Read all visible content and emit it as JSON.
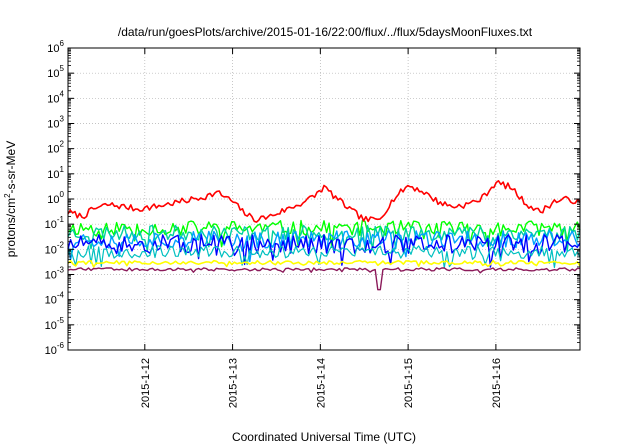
{
  "chart_data": {
    "type": "line",
    "title": "/data/run/goesPlots/archive/2015-01-16/22:00/flux/../flux/5daysMoonFluxes.txt",
    "xlabel": "Coordinated Universal Time (UTC)",
    "ylabel": {
      "main": "protons/cm",
      "sup": "2",
      "rest": "-s-sr-MeV"
    },
    "x_range": [
      "2015-01-11 03:00",
      "2015-01-16 23:00"
    ],
    "ylim": [
      1e-06,
      1000000.0
    ],
    "y_scale": "log",
    "grid": true,
    "x_ticks": [
      {
        "date": "2015-01-12",
        "label": "2015-1-12"
      },
      {
        "date": "2015-01-13",
        "label": "2015-1-13"
      },
      {
        "date": "2015-01-14",
        "label": "2015-1-14"
      },
      {
        "date": "2015-01-15",
        "label": "2015-1-15"
      },
      {
        "date": "2015-01-16",
        "label": "2015-1-16"
      }
    ],
    "y_ticks": [
      {
        "value": 1e-06,
        "base": "10",
        "exp": "-6"
      },
      {
        "value": 1e-05,
        "base": "10",
        "exp": "-5"
      },
      {
        "value": 0.0001,
        "base": "10",
        "exp": "-4"
      },
      {
        "value": 0.001,
        "base": "10",
        "exp": "-3"
      },
      {
        "value": 0.01,
        "base": "10",
        "exp": "-2"
      },
      {
        "value": 0.1,
        "base": "10",
        "exp": "-1"
      },
      {
        "value": 1,
        "base": "10",
        "exp": "0"
      },
      {
        "value": 10,
        "base": "10",
        "exp": "1"
      },
      {
        "value": 100,
        "base": "10",
        "exp": "2"
      },
      {
        "value": 1000,
        "base": "10",
        "exp": "3"
      },
      {
        "value": 10000,
        "base": "10",
        "exp": "4"
      },
      {
        "value": 100000,
        "base": "10",
        "exp": "5"
      },
      {
        "value": 1000000,
        "base": "10",
        "exp": "6"
      }
    ],
    "series": [
      {
        "color": "#ff0000",
        "width": 1.6,
        "x": [
          "2015-01-11 03:00",
          "2015-01-11 07:00",
          "2015-01-11 10:00",
          "2015-01-11 14:00",
          "2015-01-11 18:00",
          "2015-01-11 22:00",
          "2015-01-12 03:00",
          "2015-01-12 08:00",
          "2015-01-12 12:00",
          "2015-01-12 16:00",
          "2015-01-12 20:00",
          "2015-01-13 00:00",
          "2015-01-13 03:00",
          "2015-01-13 06:00",
          "2015-01-13 10:00",
          "2015-01-13 14:00",
          "2015-01-13 18:00",
          "2015-01-13 22:00",
          "2015-01-14 01:00",
          "2015-01-14 04:00",
          "2015-01-14 08:00",
          "2015-01-14 12:00",
          "2015-01-14 16:00",
          "2015-01-14 20:00",
          "2015-01-15 00:00",
          "2015-01-15 04:00",
          "2015-01-15 08:00",
          "2015-01-15 12:00",
          "2015-01-15 16:00",
          "2015-01-15 20:00",
          "2015-01-16 00:00",
          "2015-01-16 04:00",
          "2015-01-16 08:00",
          "2015-01-16 12:00",
          "2015-01-16 16:00",
          "2015-01-16 20:00",
          "2015-01-16 23:00"
        ],
        "y": [
          0.3,
          0.2,
          0.4,
          0.6,
          0.5,
          0.4,
          0.5,
          0.7,
          0.9,
          1.2,
          1.8,
          0.8,
          0.3,
          0.15,
          0.2,
          0.35,
          0.6,
          1.2,
          3.0,
          1.2,
          0.4,
          0.15,
          0.15,
          1.0,
          3.5,
          2.0,
          0.8,
          0.5,
          0.6,
          1.0,
          4.5,
          3.0,
          0.7,
          0.3,
          0.8,
          1.0,
          0.7
        ]
      },
      {
        "color": "#00ff00",
        "width": 1.4,
        "base": 0.07,
        "spread": 0.6,
        "seed": 11
      },
      {
        "color": "#00d0a0",
        "width": 1.4,
        "base": 0.045,
        "spread": 0.6,
        "seed": 23
      },
      {
        "color": "#00a0ff",
        "width": 1.4,
        "base": 0.025,
        "spread": 0.7,
        "seed": 37
      },
      {
        "color": "#0000ff",
        "width": 1.4,
        "base": 0.016,
        "spread": 0.75,
        "seed": 51
      },
      {
        "color": "#00c0c0",
        "width": 1.2,
        "base": 0.008,
        "spread": 0.5,
        "seed": 67
      },
      {
        "color": "#ffff00",
        "width": 1.6,
        "base": 0.003,
        "spread": 0.15,
        "seed": 79
      },
      {
        "color": "#8b1a5a",
        "width": 1.4,
        "base": 0.0016,
        "spread": 0.12,
        "seed": 93,
        "spike": {
          "x": "2015-01-14 16:00",
          "y": 0.00025
        }
      }
    ]
  }
}
